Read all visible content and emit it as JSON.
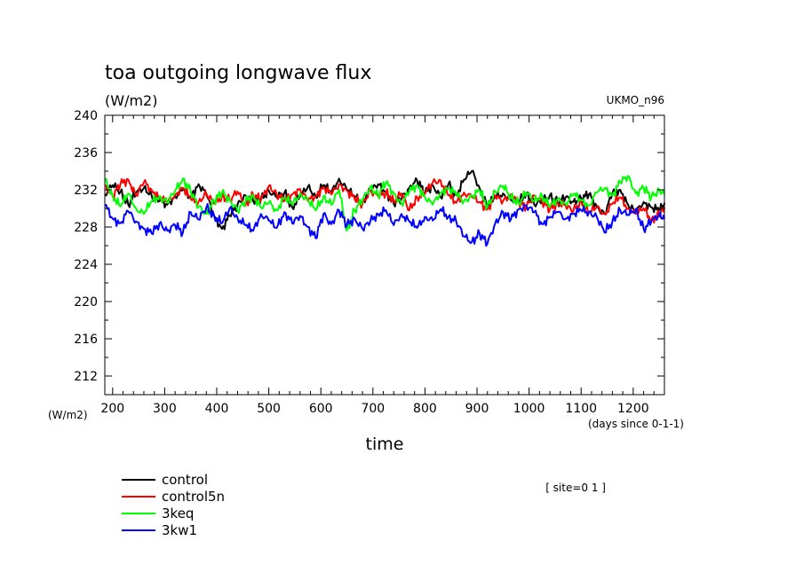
{
  "chart_data": {
    "type": "line",
    "title": "toa outgoing longwave flux",
    "units": "(W/m2)",
    "model": "UKMO_n96",
    "xlabel": "time",
    "xunits": "(days since 0-1-1)",
    "yunits_left": "(W/m2)",
    "site": "[ site=0 1 ]",
    "xlim": [
      185,
      1260
    ],
    "ylim": [
      210,
      240
    ],
    "xticks": [
      200,
      300,
      400,
      500,
      600,
      700,
      800,
      900,
      1000,
      1100,
      1200
    ],
    "yticks": [
      212,
      216,
      220,
      224,
      228,
      232,
      236,
      240
    ],
    "grid": false,
    "legend_position": "bottom-left",
    "series": [
      {
        "name": "control",
        "color": "#000000",
        "x": [
          185,
          200,
          215,
          230,
          245,
          260,
          275,
          290,
          305,
          320,
          335,
          350,
          365,
          380,
          395,
          410,
          425,
          440,
          455,
          470,
          485,
          500,
          515,
          530,
          545,
          560,
          575,
          590,
          605,
          620,
          635,
          650,
          665,
          680,
          695,
          710,
          725,
          740,
          755,
          770,
          785,
          800,
          815,
          830,
          845,
          860,
          875,
          890,
          905,
          920,
          935,
          950,
          965,
          980,
          995,
          1010,
          1025,
          1040,
          1055,
          1070,
          1085,
          1100,
          1115,
          1130,
          1145,
          1160,
          1175,
          1190,
          1205,
          1220,
          1235,
          1250,
          1260
        ],
        "y": [
          231.5,
          232.5,
          231.8,
          230.4,
          231.7,
          232.2,
          231.4,
          230.8,
          230.4,
          231.3,
          232.0,
          231.2,
          232.6,
          231.5,
          229.2,
          227.8,
          229.2,
          230.4,
          231.4,
          230.8,
          231.0,
          231.9,
          231.2,
          231.7,
          230.1,
          231.3,
          232.3,
          231.3,
          232.5,
          231.7,
          233.2,
          232.0,
          231.3,
          230.7,
          231.9,
          232.6,
          231.8,
          230.5,
          231.1,
          232.2,
          233.0,
          231.6,
          232.5,
          231.2,
          232.6,
          231.4,
          233.1,
          234.0,
          232.2,
          230.2,
          231.2,
          231.6,
          230.9,
          230.7,
          231.7,
          230.4,
          230.8,
          231.4,
          230.6,
          231.2,
          230.7,
          231.1,
          231.5,
          230.2,
          229.4,
          231.6,
          232.0,
          230.4,
          229.6,
          230.7,
          230.1,
          229.8,
          230.6
        ]
      },
      {
        "name": "control5n",
        "color": "#ff0000",
        "x": [
          185,
          200,
          215,
          230,
          245,
          260,
          275,
          290,
          305,
          320,
          335,
          350,
          365,
          380,
          395,
          410,
          425,
          440,
          455,
          470,
          485,
          500,
          515,
          530,
          545,
          560,
          575,
          590,
          605,
          620,
          635,
          650,
          665,
          680,
          695,
          710,
          725,
          740,
          755,
          770,
          785,
          800,
          815,
          830,
          845,
          860,
          875,
          890,
          905,
          920,
          935,
          950,
          965,
          980,
          995,
          1010,
          1025,
          1040,
          1055,
          1070,
          1085,
          1100,
          1115,
          1130,
          1145,
          1160,
          1175,
          1190,
          1205,
          1220,
          1235,
          1250,
          1260
        ],
        "y": [
          232.5,
          231.3,
          232.6,
          233.1,
          231.4,
          232.8,
          232.0,
          231.1,
          230.6,
          231.5,
          232.2,
          231.0,
          230.7,
          231.6,
          230.5,
          231.3,
          230.9,
          231.8,
          230.3,
          231.5,
          230.9,
          232.4,
          231.6,
          230.8,
          231.5,
          232.1,
          230.8,
          231.3,
          232.3,
          231.5,
          232.6,
          231.9,
          231.0,
          230.5,
          231.9,
          231.3,
          231.7,
          230.8,
          231.6,
          229.8,
          231.2,
          231.6,
          232.8,
          233.0,
          231.4,
          230.6,
          231.7,
          231.2,
          230.7,
          229.9,
          231.3,
          230.8,
          231.5,
          230.6,
          230.2,
          231.4,
          230.7,
          229.9,
          230.6,
          230.3,
          229.7,
          230.8,
          229.6,
          230.1,
          229.4,
          230.5,
          231.2,
          230.0,
          229.4,
          230.0,
          228.8,
          229.3,
          230.1
        ]
      },
      {
        "name": "3keq",
        "color": "#00ff00",
        "x": [
          185,
          200,
          215,
          230,
          245,
          260,
          275,
          290,
          305,
          320,
          335,
          350,
          365,
          380,
          395,
          410,
          425,
          440,
          455,
          470,
          485,
          500,
          515,
          530,
          545,
          560,
          575,
          590,
          605,
          620,
          635,
          650,
          665,
          680,
          695,
          710,
          725,
          740,
          755,
          770,
          785,
          800,
          815,
          830,
          845,
          860,
          875,
          890,
          905,
          920,
          935,
          950,
          965,
          980,
          995,
          1010,
          1025,
          1040,
          1055,
          1070,
          1085,
          1100,
          1115,
          1130,
          1145,
          1160,
          1175,
          1190,
          1205,
          1220,
          1235,
          1250,
          1260
        ],
        "y": [
          233.0,
          231.4,
          230.2,
          231.6,
          230.0,
          229.4,
          230.8,
          231.3,
          230.6,
          231.9,
          233.2,
          231.8,
          230.2,
          229.4,
          230.8,
          231.7,
          230.9,
          229.8,
          230.7,
          231.4,
          230.1,
          230.6,
          229.8,
          231.2,
          230.4,
          231.6,
          230.9,
          229.8,
          231.3,
          230.4,
          232.0,
          227.6,
          229.8,
          230.9,
          232.3,
          231.4,
          232.8,
          231.6,
          230.5,
          231.8,
          232.5,
          231.2,
          230.4,
          231.7,
          232.2,
          231.5,
          230.8,
          231.3,
          231.9,
          230.2,
          231.8,
          232.4,
          231.2,
          230.6,
          231.7,
          230.8,
          231.4,
          230.2,
          231.0,
          230.5,
          231.5,
          230.9,
          230.3,
          231.7,
          232.2,
          231.4,
          232.8,
          233.5,
          231.6,
          232.2,
          231.2,
          232.0,
          231.5
        ]
      },
      {
        "name": "3kw1",
        "color": "#0000ff",
        "x": [
          185,
          200,
          215,
          230,
          245,
          260,
          275,
          290,
          305,
          320,
          335,
          350,
          365,
          380,
          395,
          410,
          425,
          440,
          455,
          470,
          485,
          500,
          515,
          530,
          545,
          560,
          575,
          590,
          605,
          620,
          635,
          650,
          665,
          680,
          695,
          710,
          725,
          740,
          755,
          770,
          785,
          800,
          815,
          830,
          845,
          860,
          875,
          890,
          905,
          920,
          935,
          950,
          965,
          980,
          995,
          1010,
          1025,
          1040,
          1055,
          1070,
          1085,
          1100,
          1115,
          1130,
          1145,
          1160,
          1175,
          1190,
          1205,
          1220,
          1235,
          1250,
          1260
        ],
        "y": [
          230.4,
          228.9,
          228.4,
          229.7,
          228.6,
          227.8,
          227.3,
          228.4,
          227.6,
          228.2,
          227.4,
          229.6,
          228.8,
          230.1,
          229.2,
          228.4,
          230.0,
          229.0,
          228.2,
          227.6,
          229.4,
          228.7,
          227.9,
          229.6,
          228.4,
          229.2,
          228.0,
          226.8,
          229.4,
          228.3,
          229.8,
          228.2,
          228.9,
          227.8,
          228.6,
          229.4,
          229.8,
          228.2,
          229.4,
          228.6,
          227.9,
          229.1,
          228.7,
          229.9,
          229.1,
          228.6,
          227.0,
          226.4,
          227.3,
          226.2,
          228.4,
          229.6,
          228.8,
          229.9,
          230.3,
          229.6,
          228.3,
          229.1,
          229.6,
          228.9,
          229.4,
          229.8,
          229.6,
          229.1,
          227.4,
          228.6,
          229.8,
          229.3,
          229.9,
          227.8,
          228.6,
          229.3,
          228.9
        ]
      }
    ]
  }
}
